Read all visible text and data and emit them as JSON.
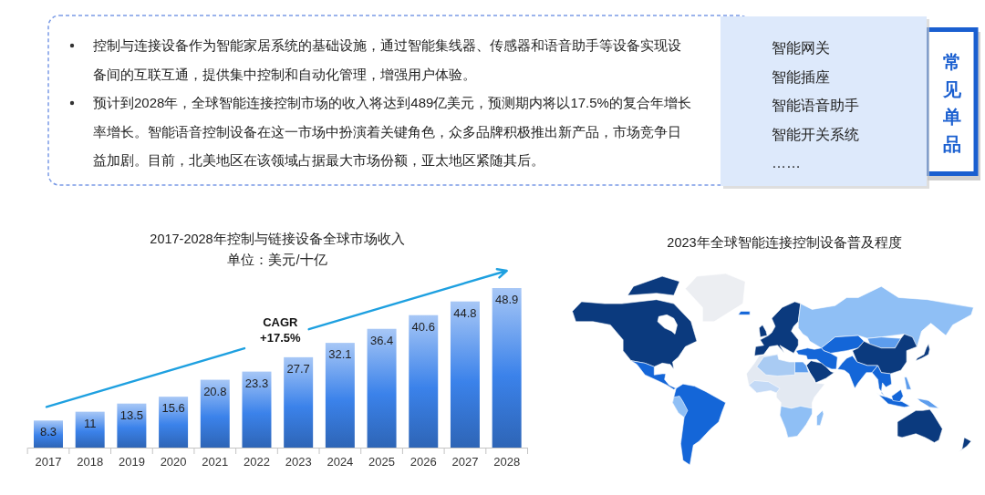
{
  "chart_data": [
    {
      "type": "other",
      "annotations": [
        "控制与连接设备作为智能家居系统的基础设施，通过智能集线器、传感器和语音助手等设备实现设备间的互联互通，提供集中控制和自动化管理，增强用户体验。",
        "预计到2028年，全球智能连接控制市场的收入将达到489亿美元，预测期内将以17.5%的复合年增长率增长。智能语音控制设备在这一市场中扮演着关键角色，众多品牌积极推出新产品，市场竞争日益加剧。目前，北美地区在该领域占据最大市场份额，亚太地区紧随其后。"
      ]
    },
    {
      "type": "other",
      "title": "常见单品",
      "annotations": [
        "智能网关",
        "智能插座",
        "智能语音助手",
        "智能开关系统",
        "……"
      ]
    },
    {
      "type": "bar",
      "title": "2017-2028年控制与链接设备全球市场收入",
      "subtitle": "单位：美元/十亿",
      "categories": [
        "2017",
        "2018",
        "2019",
        "2020",
        "2021",
        "2022",
        "2023",
        "2024",
        "2025",
        "2026",
        "2027",
        "2028"
      ],
      "values": [
        8.3,
        11,
        13.5,
        15.6,
        20.8,
        23.3,
        27.7,
        32.1,
        36.4,
        40.6,
        44.8,
        48.9
      ],
      "color": "#3b82ea",
      "data_labels": true,
      "annotations": [
        "CAGR +17.5%"
      ]
    },
    {
      "type": "other",
      "title": "2023年全球智能连接控制设备普及程度"
    }
  ]
}
